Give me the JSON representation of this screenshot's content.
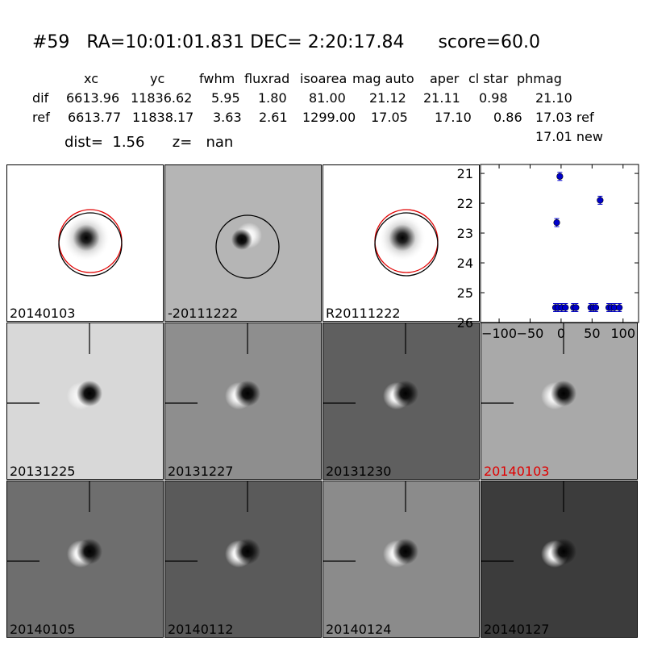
{
  "title": "#59   RA=10:01:01.831 DEC= 2:20:17.84      score=60.0",
  "table": {
    "headers": [
      "xc",
      "yc",
      "fwhm",
      "fluxrad",
      "isoarea",
      "mag auto",
      "aper",
      "cl star",
      "phmag"
    ],
    "rows": [
      {
        "name": "dif",
        "values": [
          "6613.96",
          "11836.62",
          "5.95",
          "1.80",
          "81.00",
          "21.12",
          "21.11",
          "0.98",
          "21.10"
        ]
      },
      {
        "name": "ref",
        "values": [
          "6613.77",
          "11838.17",
          "3.63",
          "2.61",
          "1299.00",
          "17.05",
          "17.10",
          "0.86",
          "17.03 ref"
        ]
      }
    ],
    "extra": "17.01 new"
  },
  "dist_line": "dist=  1.56      z=   nan",
  "panels": [
    {
      "label": "20140103",
      "bg": "#ffffff",
      "kind": "ref",
      "red": false
    },
    {
      "label": "-20111222",
      "bg": "#b5b5b5",
      "kind": "diff",
      "red": false
    },
    {
      "label": "R20111222",
      "bg": "#ffffff",
      "kind": "ref",
      "red": false
    },
    {
      "label": "20131225",
      "bg": "#d8d8d8",
      "kind": "stamp",
      "red": false
    },
    {
      "label": "20131227",
      "bg": "#8e8e8e",
      "kind": "stamp",
      "red": false
    },
    {
      "label": "20131230",
      "bg": "#5f5f5f",
      "kind": "stamp",
      "red": false
    },
    {
      "label": "20140103",
      "bg": "#a9a9a9",
      "kind": "stamp",
      "red": true
    },
    {
      "label": "20140105",
      "bg": "#6e6e6e",
      "kind": "stamp",
      "red": false
    },
    {
      "label": "20140112",
      "bg": "#5a5a5a",
      "kind": "stamp",
      "red": false
    },
    {
      "label": "20140124",
      "bg": "#8b8b8b",
      "kind": "stamp",
      "red": false
    },
    {
      "label": "20140127",
      "bg": "#3c3c3c",
      "kind": "stamp",
      "red": false
    }
  ],
  "chart_data": {
    "type": "scatter",
    "xlim": [
      -130,
      125
    ],
    "ylim": [
      26,
      20.7
    ],
    "xticks": [
      -100,
      -50,
      0,
      50,
      100
    ],
    "yticks": [
      21,
      22,
      23,
      24,
      25,
      26
    ],
    "color": "#0000cc",
    "points": [
      {
        "x": -2,
        "y": 21.1
      },
      {
        "x": -7,
        "y": 22.65
      },
      {
        "x": 63,
        "y": 21.9
      },
      {
        "x": -9,
        "y": 25.5
      },
      {
        "x": -5,
        "y": 25.5
      },
      {
        "x": 1,
        "y": 25.5
      },
      {
        "x": 7,
        "y": 25.5
      },
      {
        "x": 20,
        "y": 25.5
      },
      {
        "x": 24,
        "y": 25.5
      },
      {
        "x": 48,
        "y": 25.5
      },
      {
        "x": 52,
        "y": 25.5
      },
      {
        "x": 56,
        "y": 25.5
      },
      {
        "x": 77,
        "y": 25.5
      },
      {
        "x": 81,
        "y": 25.5
      },
      {
        "x": 86,
        "y": 25.5
      },
      {
        "x": 94,
        "y": 25.5
      }
    ]
  }
}
